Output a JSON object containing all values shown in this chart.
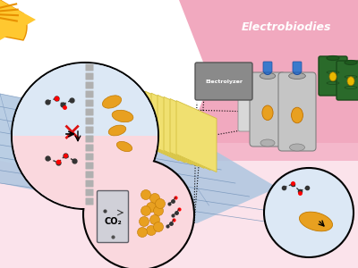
{
  "bg_color": "#ffffff",
  "pink_color": "#f0a0b8",
  "pink_light": "#f8c8d8",
  "solar_blue": "#aec6e0",
  "solar_grid": "#7090b8",
  "panel_yellow": "#f0e070",
  "panel_dark": "#d4c040",
  "bacteria_color": "#e8a020",
  "bacteria_edge": "#c07800",
  "barrel_green": "#2a6a2a",
  "barrel_edge": "#1a4a1a",
  "barrel_yellow": "#e8b800",
  "tank_gray": "#c0c0c0",
  "tank_dark": "#909090",
  "motor_blue": "#3a7acc",
  "co2_gray": "#b0b0c0",
  "electrolyzer_label": "Electrolyzer",
  "co2_label": "CO₂",
  "banner_text": "Electrobiodies",
  "circle_blue": "#dce8f5",
  "circle_pink": "#fad8de",
  "circle_fill": "#f5f5f8",
  "sun_yellow": "#ffc830",
  "sun_orange": "#e89000"
}
